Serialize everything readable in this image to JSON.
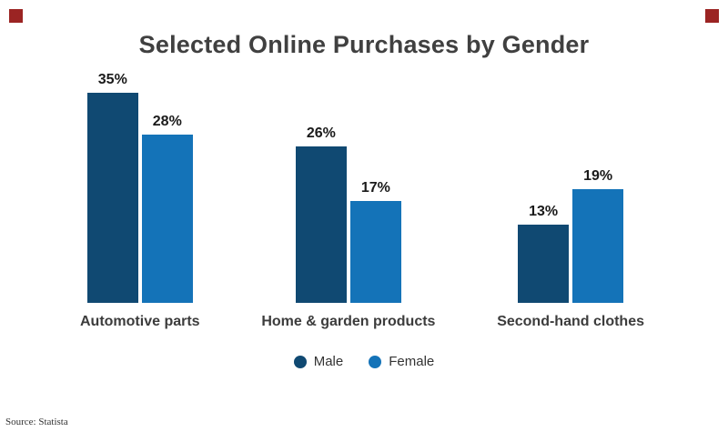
{
  "page": {
    "title": "Selected Online Purchases by Gender",
    "source": "Source: Statista",
    "accent_color": "#9b2423"
  },
  "chart_data": {
    "type": "bar",
    "title": "Selected Online Purchases by Gender",
    "categories": [
      "Automotive parts",
      "Home & garden products",
      "Second-hand clothes"
    ],
    "series": [
      {
        "name": "Male",
        "color": "#104972",
        "values": [
          35,
          26,
          13
        ]
      },
      {
        "name": "Female",
        "color": "#1473b8",
        "values": [
          28,
          17,
          19
        ]
      }
    ],
    "data_labels": {
      "Male": [
        "35%",
        "26%",
        "13%"
      ],
      "Female": [
        "28%",
        "17%",
        "19%"
      ]
    },
    "value_format": "percent",
    "ylim": [
      0,
      38
    ],
    "grid": false,
    "legend_position": "bottom",
    "legend": [
      "Male",
      "Female"
    ],
    "source": "Source: Statista"
  }
}
